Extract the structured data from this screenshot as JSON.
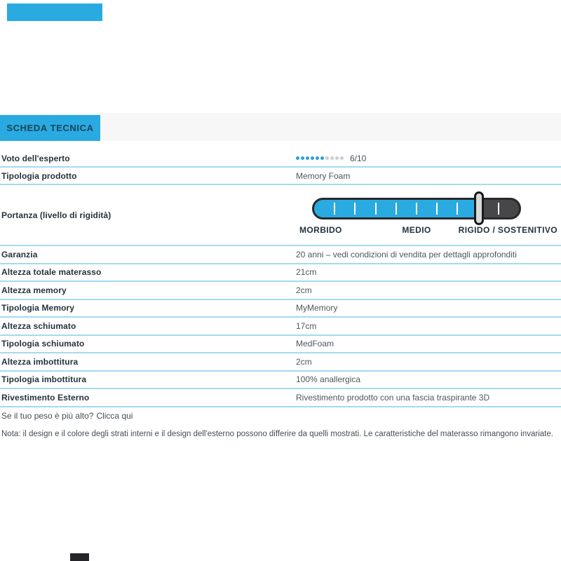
{
  "colors": {
    "accent": "#29abe2",
    "separator": "#a6d9f0",
    "band_bg": "#f7f7f8",
    "slider_dark": "#47474a",
    "slider_border": "#29292c",
    "handle_fill": "#d9d9d9",
    "dot_filled": "#2d9fd9",
    "dot_empty": "#c9ced4"
  },
  "tab": {
    "label": "SCHEDA TECNICA"
  },
  "rating": {
    "filled": 6,
    "total": 10,
    "label": "6/10"
  },
  "slider": {
    "segments": 10,
    "filled_segments": 8,
    "labels": {
      "left": "MORBIDO",
      "center": "MEDIO",
      "right": "RIGIDO / SOSTENITIVO"
    }
  },
  "rows": [
    {
      "label": "Voto dell'esperto",
      "value": ""
    },
    {
      "label": "Tipologia prodotto",
      "value": "Memory Foam"
    },
    {
      "label": "Portanza (livello di rigidità)",
      "value": ""
    },
    {
      "label": "Garanzia",
      "value": "20 anni – vedi condizioni di vendita per dettagli approfonditi"
    },
    {
      "label": "Altezza totale materasso",
      "value": "21cm"
    },
    {
      "label": "Altezza memory",
      "value": "2cm"
    },
    {
      "label": "Tipologia Memory",
      "value": "MyMemory"
    },
    {
      "label": "Altezza schiumato",
      "value": "17cm"
    },
    {
      "label": "Tipologia schiumato",
      "value": "MedFoam"
    },
    {
      "label": "Altezza imbottitura",
      "value": "2cm"
    },
    {
      "label": "Tipologia imbottitura",
      "value": "100% anallergica"
    },
    {
      "label": "Rivestimento Esterno",
      "value": "Rivestimento prodotto con una fascia traspirante 3D"
    }
  ],
  "footer": {
    "weight_question": "Se il tuo peso è più alto?",
    "weight_link": "Clicca qui",
    "note": "Nota: il design e il colore degli strati interni e il design dell'esterno possono differire da quelli mostrati. Le caratteristiche del materasso rimangono invariate."
  }
}
